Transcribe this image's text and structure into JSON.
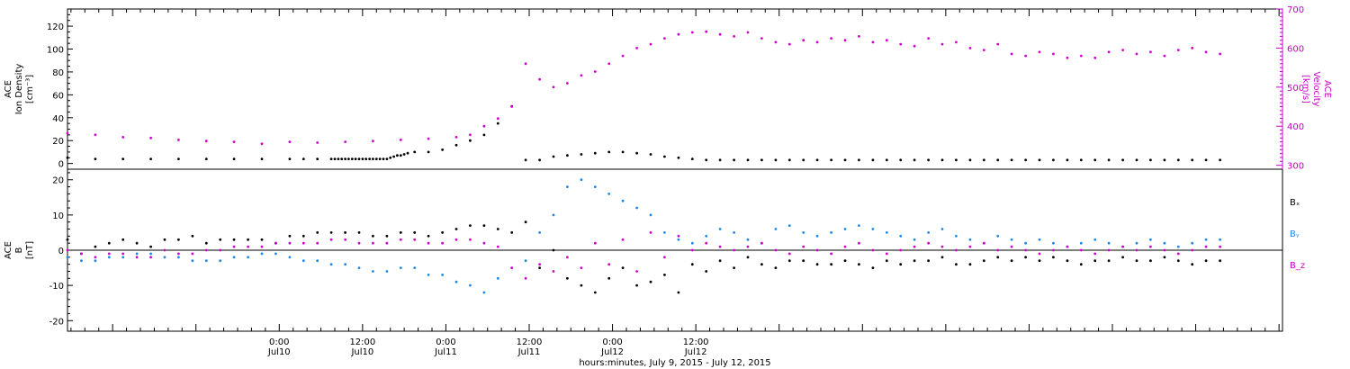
{
  "chart_data": [
    {
      "type": "scatter",
      "panel": "top",
      "left_axis_label": [
        "ACE",
        "Ion Density",
        "[cm⁻³]"
      ],
      "right_axis_label": [
        "ACE",
        "Velocity",
        "[km/s]"
      ],
      "left_ylim": [
        -5,
        135
      ],
      "left_ticks": [
        "0",
        "20",
        "40",
        "60",
        "80",
        "100",
        "120"
      ],
      "right_ylim": [
        290,
        700
      ],
      "right_ticks": [
        "300",
        "400",
        "500",
        "600",
        "700"
      ],
      "colors": {
        "density": "#000000",
        "velocity": "#cc00cc"
      },
      "series": [
        {
          "color": "#000000",
          "axis": "left",
          "x_hours": [
            0,
            4,
            8,
            12,
            16,
            20,
            24,
            28,
            32,
            34,
            36,
            38,
            38.5,
            39,
            39.5,
            40,
            40.5,
            41,
            41.5,
            42,
            42.5,
            43,
            43.5,
            44,
            44.5,
            45,
            45.5,
            46,
            46.5,
            47,
            47.5,
            48,
            48.5,
            49,
            50,
            52,
            54,
            56,
            58,
            60,
            62,
            64,
            66,
            68,
            70,
            72,
            74,
            76,
            78,
            80,
            82,
            84,
            86,
            88,
            90,
            92,
            94,
            96,
            98,
            100,
            102,
            104,
            106,
            108,
            110,
            112,
            114,
            116,
            118,
            120,
            122,
            124,
            126,
            128,
            130,
            132,
            134,
            136,
            138,
            140,
            142,
            144,
            146,
            148,
            150,
            152,
            154,
            156,
            158,
            160,
            162,
            164,
            166
          ],
          "y": [
            5,
            4,
            4,
            4,
            4,
            4,
            4,
            4,
            4,
            4,
            4,
            4,
            4,
            4,
            4,
            4,
            4,
            4,
            4,
            4,
            4,
            4,
            4,
            4,
            4,
            4,
            4,
            4,
            5,
            6,
            7,
            7,
            8,
            9,
            10,
            10,
            12,
            16,
            20,
            25,
            35,
            50,
            3,
            3,
            6,
            7,
            8,
            9,
            10,
            10,
            9,
            8,
            6,
            5,
            4,
            3,
            3,
            3,
            3,
            3,
            3,
            3,
            3,
            3,
            3,
            3,
            3,
            3,
            3,
            3,
            3,
            3,
            3,
            3,
            3,
            3,
            3,
            3,
            3,
            3,
            3,
            3,
            3,
            3,
            3,
            3,
            3,
            3,
            3,
            3,
            3,
            3,
            3
          ]
        },
        {
          "color": "#cc00cc",
          "axis": "right",
          "x_hours": [
            0,
            4,
            8,
            12,
            16,
            20,
            24,
            28,
            32,
            36,
            40,
            44,
            48,
            52,
            56,
            58,
            60,
            62,
            64,
            66,
            68,
            70,
            72,
            74,
            76,
            78,
            80,
            82,
            84,
            86,
            88,
            90,
            92,
            94,
            96,
            98,
            100,
            102,
            104,
            106,
            108,
            110,
            112,
            114,
            116,
            118,
            120,
            122,
            124,
            126,
            128,
            130,
            132,
            134,
            136,
            138,
            140,
            142,
            144,
            146,
            148,
            150,
            152,
            154,
            156,
            158,
            160,
            162,
            164,
            166
          ],
          "y": [
            382,
            378,
            372,
            370,
            365,
            362,
            360,
            355,
            360,
            358,
            360,
            362,
            365,
            368,
            372,
            378,
            400,
            420,
            450,
            560,
            520,
            500,
            510,
            530,
            540,
            560,
            580,
            600,
            610,
            625,
            635,
            640,
            642,
            635,
            630,
            640,
            625,
            615,
            610,
            620,
            615,
            625,
            620,
            630,
            615,
            620,
            610,
            605,
            625,
            610,
            615,
            600,
            595,
            610,
            585,
            580,
            590,
            585,
            575,
            580,
            575,
            590,
            595,
            585,
            590,
            580,
            595,
            600,
            590,
            585
          ]
        }
      ]
    },
    {
      "type": "scatter",
      "panel": "bottom",
      "left_axis_label": [
        "ACE",
        "B",
        "[nT]"
      ],
      "ylim": [
        -23,
        23
      ],
      "ticks": [
        "-20",
        "-10",
        "0",
        "10",
        "20"
      ],
      "legend": [
        "Bₓ",
        "Bᵧ",
        "B_z"
      ],
      "colors": {
        "Bx": "#000000",
        "By": "#1e88e5",
        "Bz": "#cc00cc"
      },
      "series": [
        {
          "name": "Bₓ",
          "color": "#000000",
          "x_hours": [
            0,
            2,
            4,
            6,
            8,
            10,
            12,
            14,
            16,
            18,
            20,
            22,
            24,
            26,
            28,
            30,
            32,
            34,
            36,
            38,
            40,
            42,
            44,
            46,
            48,
            50,
            52,
            54,
            56,
            58,
            60,
            62,
            64,
            66,
            68,
            70,
            72,
            74,
            76,
            78,
            80,
            82,
            84,
            86,
            88,
            90,
            92,
            94,
            96,
            98,
            100,
            102,
            104,
            106,
            108,
            110,
            112,
            114,
            116,
            118,
            120,
            122,
            124,
            126,
            128,
            130,
            132,
            134,
            136,
            138,
            140,
            142,
            144,
            146,
            148,
            150,
            152,
            154,
            156,
            158,
            160,
            162,
            164,
            166
          ],
          "y": [
            3,
            -1,
            1,
            2,
            3,
            2,
            1,
            3,
            3,
            4,
            2,
            3,
            3,
            3,
            3,
            2,
            4,
            4,
            5,
            5,
            5,
            5,
            4,
            4,
            5,
            5,
            4,
            5,
            6,
            7,
            7,
            6,
            5,
            8,
            -5,
            0,
            -8,
            -10,
            -12,
            -8,
            -5,
            -10,
            -9,
            -7,
            -12,
            -4,
            -6,
            -3,
            -5,
            -2,
            -4,
            -5,
            -3,
            -3,
            -4,
            -4,
            -3,
            -4,
            -5,
            -3,
            -4,
            -3,
            -3,
            -2,
            -4,
            -4,
            -3,
            -2,
            -3,
            -2,
            -3,
            -2,
            -3,
            -4,
            -3,
            -3,
            -2,
            -3,
            -3,
            -2,
            -3,
            -4,
            -3,
            -3
          ]
        },
        {
          "name": "Bᵧ",
          "color": "#1e88e5",
          "x_hours": [
            0,
            2,
            4,
            6,
            8,
            10,
            12,
            14,
            16,
            18,
            20,
            22,
            24,
            26,
            28,
            30,
            32,
            34,
            36,
            38,
            40,
            42,
            44,
            46,
            48,
            50,
            52,
            54,
            56,
            58,
            60,
            62,
            64,
            66,
            68,
            70,
            72,
            74,
            76,
            78,
            80,
            82,
            84,
            86,
            88,
            90,
            92,
            94,
            96,
            98,
            100,
            102,
            104,
            106,
            108,
            110,
            112,
            114,
            116,
            118,
            120,
            122,
            124,
            126,
            128,
            130,
            132,
            134,
            136,
            138,
            140,
            142,
            144,
            146,
            148,
            150,
            152,
            154,
            156,
            158,
            160,
            162,
            164,
            166
          ],
          "y": [
            -2,
            -3,
            -3,
            -2,
            -2,
            -1,
            -1,
            -2,
            -2,
            -3,
            -3,
            -3,
            -2,
            -2,
            -1,
            -1,
            -2,
            -3,
            -3,
            -4,
            -4,
            -5,
            -6,
            -6,
            -5,
            -5,
            -7,
            -7,
            -9,
            -10,
            -12,
            -8,
            -5,
            -3,
            5,
            10,
            18,
            20,
            18,
            16,
            14,
            12,
            10,
            5,
            3,
            2,
            4,
            6,
            5,
            3,
            2,
            6,
            7,
            5,
            4,
            5,
            6,
            7,
            6,
            5,
            4,
            3,
            5,
            6,
            4,
            3,
            2,
            4,
            3,
            2,
            3,
            2,
            1,
            2,
            3,
            2,
            1,
            2,
            3,
            2,
            1,
            2,
            3,
            3
          ]
        },
        {
          "name": "B_z",
          "color": "#cc00cc",
          "x_hours": [
            0,
            2,
            4,
            6,
            8,
            10,
            12,
            14,
            16,
            18,
            20,
            22,
            24,
            26,
            28,
            30,
            32,
            34,
            36,
            38,
            40,
            42,
            44,
            46,
            48,
            50,
            52,
            54,
            56,
            58,
            60,
            62,
            64,
            66,
            68,
            70,
            72,
            74,
            76,
            78,
            80,
            82,
            84,
            86,
            88,
            90,
            92,
            94,
            96,
            98,
            100,
            102,
            104,
            106,
            108,
            110,
            112,
            114,
            116,
            118,
            120,
            122,
            124,
            126,
            128,
            130,
            132,
            134,
            136,
            138,
            140,
            142,
            144,
            146,
            148,
            150,
            152,
            154,
            156,
            158,
            160,
            162,
            164,
            166
          ],
          "y": [
            0,
            -1,
            -2,
            -1,
            -1,
            -2,
            -2,
            0,
            -1,
            -1,
            0,
            0,
            1,
            1,
            1,
            2,
            2,
            2,
            2,
            3,
            3,
            2,
            2,
            2,
            3,
            3,
            2,
            2,
            3,
            3,
            2,
            1,
            -5,
            -8,
            -4,
            -6,
            -2,
            -5,
            2,
            -4,
            3,
            -6,
            5,
            -2,
            4,
            0,
            2,
            1,
            0,
            1,
            2,
            0,
            -1,
            1,
            0,
            -1,
            1,
            2,
            0,
            -1,
            0,
            1,
            2,
            1,
            0,
            1,
            2,
            0,
            1,
            0,
            -1,
            0,
            1,
            0,
            -1,
            0,
            1,
            0,
            1,
            0,
            -1,
            0,
            1,
            1
          ]
        }
      ]
    }
  ],
  "x_axis": {
    "xlim_hours": [
      -6.5,
      168.5
    ],
    "tick_labels": [
      {
        "time": "0:00",
        "date": "Jul10"
      },
      {
        "time": "12:00",
        "date": "Jul10"
      },
      {
        "time": "0:00",
        "date": "Jul11"
      },
      {
        "time": "12:00",
        "date": "Jul11"
      },
      {
        "time": "0:00",
        "date": "Jul12"
      },
      {
        "time": "12:00",
        "date": "Jul12"
      }
    ],
    "tick_hours": [
      24,
      36,
      48,
      60,
      72,
      84
    ],
    "title": "hours:minutes, July  9, 2015 - July 12, 2015"
  }
}
